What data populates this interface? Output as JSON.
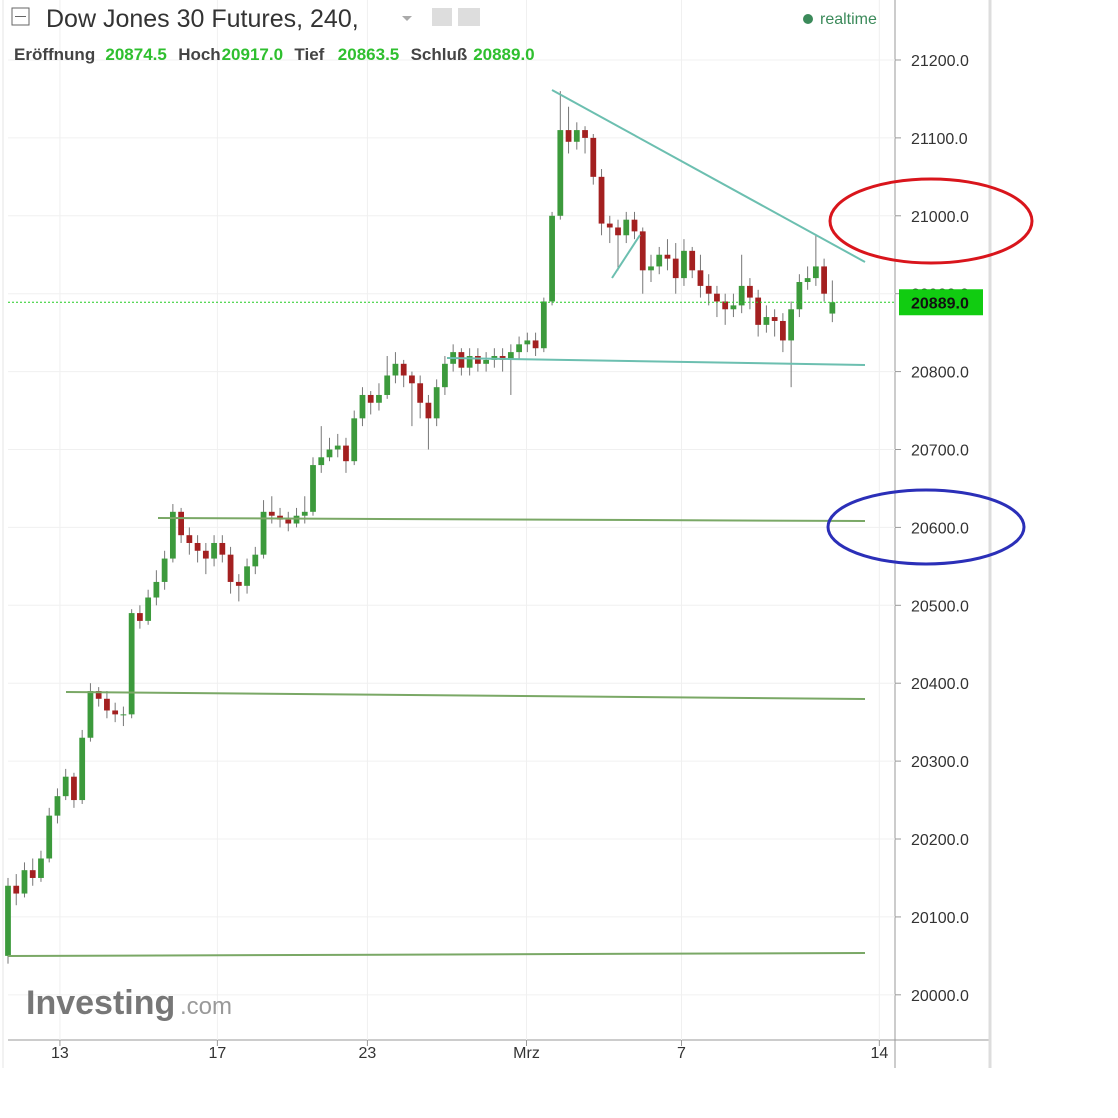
{
  "chart_data": {
    "type": "candlestick",
    "title": "Dow Jones 30 Futures, 240,",
    "status": "realtime",
    "watermark": [
      "Investing",
      ".com"
    ],
    "legend": [
      {
        "label": "Eröffnung",
        "value": "20874.5"
      },
      {
        "label": "Hoch",
        "value": "20917.0"
      },
      {
        "label": "Tief",
        "value": "20863.5"
      },
      {
        "label": "Schluß",
        "value": "20889.0"
      }
    ],
    "up_color": "#3c9a3c",
    "down_color": "#a32020",
    "open": [
      20050,
      20140,
      20130,
      20160,
      20150,
      20175,
      20230,
      20255,
      20280,
      20250,
      20330,
      20390,
      20380,
      20365,
      20360,
      20360,
      20490,
      20480,
      20510,
      20530,
      20560,
      20620,
      20590,
      20580,
      20570,
      20560,
      20580,
      20565,
      20530,
      20525,
      20550,
      20565,
      20620,
      20615,
      20610,
      20605,
      20615,
      20620,
      20680,
      20690,
      20700,
      20705,
      20685,
      20740,
      20770,
      20760,
      20770,
      20795,
      20810,
      20795,
      20785,
      20760,
      20740,
      20780,
      20810,
      20825,
      20805,
      20820,
      20810,
      20815,
      20820,
      20815,
      20825,
      20835,
      20840,
      20830,
      20890,
      21000,
      21110,
      21095,
      21110,
      21100,
      21050,
      20990,
      20985,
      20975,
      20995,
      20980,
      20930,
      20935,
      20950,
      20945,
      20920,
      20955,
      20930,
      20910,
      20900,
      20890,
      20880,
      20885,
      20910,
      20895,
      20860,
      20870,
      20865,
      20840,
      20880,
      20915,
      20920,
      20935,
      20874.5
    ],
    "high": [
      20150,
      20155,
      20170,
      20175,
      20185,
      20240,
      20265,
      20290,
      20285,
      20340,
      20400,
      20395,
      20390,
      20375,
      20370,
      20495,
      20500,
      20520,
      20545,
      20570,
      20630,
      20625,
      20600,
      20590,
      20580,
      20590,
      20590,
      20575,
      20540,
      20560,
      20575,
      20635,
      20640,
      20625,
      20620,
      20625,
      20640,
      20690,
      20730,
      20715,
      20720,
      20715,
      20750,
      20780,
      20775,
      20785,
      20820,
      20825,
      20815,
      20800,
      20795,
      20770,
      20790,
      20820,
      20835,
      20830,
      20830,
      20830,
      20825,
      20830,
      20830,
      20835,
      20845,
      20850,
      20850,
      20895,
      21005,
      21160,
      21140,
      21120,
      21115,
      21105,
      21060,
      21000,
      20995,
      21005,
      21005,
      20985,
      20950,
      20960,
      20970,
      20965,
      20970,
      20960,
      20950,
      20925,
      20910,
      20900,
      20900,
      20950,
      20920,
      20905,
      20885,
      20880,
      20875,
      20890,
      20925,
      20935,
      20975,
      20945,
      20917
    ],
    "low": [
      20040,
      20115,
      20125,
      20140,
      20145,
      20170,
      20220,
      20250,
      20240,
      20245,
      20325,
      20370,
      20355,
      20350,
      20345,
      20355,
      20470,
      20475,
      20500,
      20520,
      20555,
      20580,
      20565,
      20555,
      20540,
      20550,
      20555,
      20515,
      20505,
      20515,
      20540,
      20560,
      20605,
      20600,
      20595,
      20600,
      20605,
      20615,
      20670,
      20685,
      20690,
      20670,
      20680,
      20730,
      20745,
      20750,
      20765,
      20785,
      20780,
      20730,
      20740,
      20700,
      20730,
      20770,
      20800,
      20795,
      20795,
      20800,
      20800,
      20805,
      20800,
      20770,
      20815,
      20825,
      20820,
      20825,
      20885,
      20995,
      21080,
      21085,
      21080,
      21040,
      20975,
      20965,
      20930,
      20965,
      20970,
      20900,
      20915,
      20925,
      20930,
      20900,
      20910,
      20920,
      20895,
      20885,
      20870,
      20860,
      20870,
      20875,
      20880,
      20845,
      20850,
      20845,
      20825,
      20780,
      20870,
      20905,
      20910,
      20890,
      20863.5
    ],
    "close": [
      20140,
      20130,
      20160,
      20150,
      20175,
      20230,
      20255,
      20280,
      20250,
      20330,
      20390,
      20380,
      20365,
      20360,
      20360,
      20490,
      20480,
      20510,
      20530,
      20560,
      20620,
      20590,
      20580,
      20570,
      20560,
      20580,
      20565,
      20530,
      20525,
      20550,
      20565,
      20620,
      20615,
      20610,
      20605,
      20615,
      20620,
      20680,
      20690,
      20700,
      20705,
      20685,
      20740,
      20770,
      20760,
      20770,
      20795,
      20810,
      20795,
      20785,
      20760,
      20740,
      20780,
      20810,
      20825,
      20805,
      20820,
      20810,
      20815,
      20820,
      20815,
      20825,
      20835,
      20840,
      20830,
      20890,
      21000,
      21110,
      21095,
      21110,
      21100,
      21050,
      20990,
      20985,
      20975,
      20995,
      20980,
      20930,
      20935,
      20950,
      20945,
      20920,
      20955,
      20930,
      20910,
      20900,
      20890,
      20880,
      20885,
      20910,
      20895,
      20860,
      20870,
      20865,
      20840,
      20880,
      20915,
      20920,
      20935,
      20900,
      20889
    ],
    "last_price": {
      "value": 20889,
      "label": "20889.0"
    },
    "xlim": [
      -0.97,
      107.6
    ],
    "xticks": [
      {
        "value": 6.3,
        "label": "13"
      },
      {
        "value": 25.4,
        "label": "17"
      },
      {
        "value": 43.6,
        "label": "23"
      },
      {
        "value": 62.9,
        "label": "Mrz"
      },
      {
        "value": 81.7,
        "label": "7"
      },
      {
        "value": 105.7,
        "label": "14"
      }
    ],
    "ylim": [
      19942,
      21277
    ],
    "yticks": [
      {
        "value": 20000,
        "label": "20000.0"
      },
      {
        "value": 20100,
        "label": "20100.0"
      },
      {
        "value": 20200,
        "label": "20200.0"
      },
      {
        "value": 20300,
        "label": "20300.0"
      },
      {
        "value": 20400,
        "label": "20400.0"
      },
      {
        "value": 20500,
        "label": "20500.0"
      },
      {
        "value": 20600,
        "label": "20600.0"
      },
      {
        "value": 20700,
        "label": "20700.0"
      },
      {
        "value": 20800,
        "label": "20800.0"
      },
      {
        "value": 20900,
        "label": "20900.0"
      },
      {
        "value": 21000,
        "label": "21000.0"
      },
      {
        "value": 21100,
        "label": "21100.0"
      },
      {
        "value": 21200,
        "label": "21200.0"
      }
    ],
    "grid": true
  }
}
